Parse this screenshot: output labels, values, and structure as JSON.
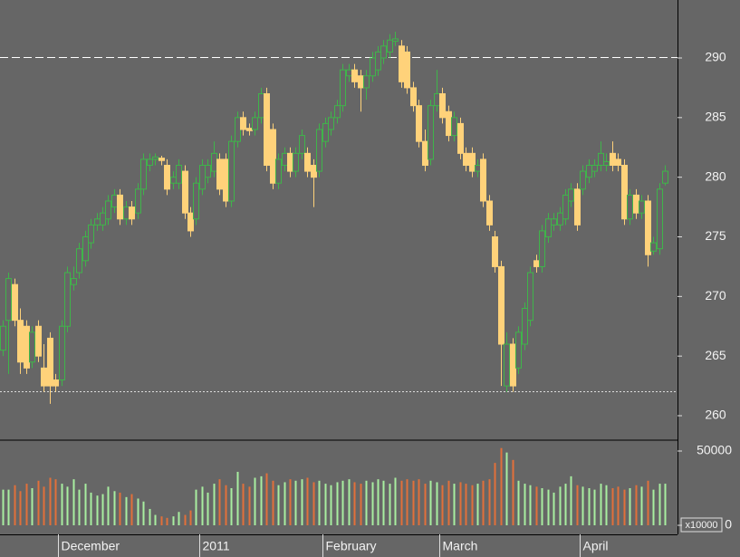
{
  "chart_data": {
    "type": "candlestick",
    "categories": [
      null,
      null,
      null,
      null,
      null,
      null,
      null,
      null,
      null,
      null,
      "December",
      null,
      null,
      null,
      null,
      null,
      null,
      null,
      null,
      null,
      null,
      null,
      null,
      null,
      null,
      null,
      null,
      null,
      null,
      null,
      null,
      null,
      null,
      null,
      "2011",
      null,
      null,
      null,
      null,
      null,
      null,
      null,
      null,
      null,
      null,
      null,
      null,
      null,
      null,
      null,
      null,
      null,
      null,
      null,
      null,
      "February",
      null,
      null,
      null,
      null,
      null,
      null,
      null,
      null,
      null,
      null,
      null,
      null,
      null,
      null,
      null,
      null,
      null,
      null,
      null,
      "March",
      null,
      null,
      null,
      null,
      null,
      null,
      null,
      null,
      null,
      null,
      null,
      null,
      null,
      null,
      null,
      null,
      null,
      null,
      null,
      null,
      null,
      null,
      null,
      "April",
      null,
      null,
      null,
      null,
      null,
      null,
      null,
      null,
      null,
      null,
      null,
      null,
      null,
      null
    ],
    "open": [
      265.5,
      268,
      271,
      268,
      267.5,
      264.5,
      267.5,
      264,
      266.5,
      263,
      263,
      267.5,
      271,
      272,
      273,
      274.5,
      276,
      276,
      276.5,
      277.5,
      278.5,
      276.5,
      277.5,
      277,
      279,
      281,
      281.5,
      281.6,
      281,
      279.5,
      279.5,
      280.5,
      277,
      276.5,
      279,
      280,
      280.5,
      281.5,
      281.5,
      278,
      283,
      285,
      284.1,
      284,
      285,
      287,
      284,
      279.5,
      281,
      282,
      280.5,
      282,
      282,
      281,
      280.5,
      283,
      284,
      285,
      286,
      288.5,
      289,
      288.5,
      287.5,
      288.5,
      289,
      290,
      290.5,
      291.4,
      291,
      290.5,
      287.5,
      286,
      283,
      281.5,
      286,
      287,
      285.5,
      283.5,
      284.5,
      282,
      282,
      280.5,
      281.5,
      278,
      275,
      272.5,
      262.5,
      266,
      264,
      266,
      268,
      273,
      272.5,
      275,
      276,
      276,
      276.5,
      278,
      279,
      279,
      280,
      280.5,
      281,
      281,
      282,
      281.5,
      281,
      276.5,
      278.5,
      277,
      278,
      273.8,
      274,
      279.5
    ],
    "high": [
      268,
      272,
      271.5,
      269,
      268,
      267.5,
      268,
      266,
      267,
      263.5,
      268,
      272.5,
      272.5,
      274.5,
      275.5,
      276.5,
      277,
      277.5,
      278.5,
      279,
      279,
      278,
      278,
      279.5,
      282,
      282,
      282,
      281.8,
      281.5,
      280.5,
      281.5,
      281,
      277.5,
      280,
      281.5,
      281.5,
      283,
      282,
      282,
      283.5,
      285.5,
      285.5,
      284.5,
      285.5,
      287.5,
      287.5,
      284.5,
      282,
      282.5,
      282.5,
      282.5,
      284,
      282.5,
      281.5,
      284.5,
      285,
      285.5,
      286.5,
      289.5,
      289.5,
      289.5,
      289,
      289,
      290.5,
      291,
      291.5,
      292,
      292.2,
      291.5,
      291,
      288,
      286.5,
      284,
      286.5,
      289,
      287.5,
      286,
      285.5,
      285,
      282.5,
      282.5,
      281.5,
      282,
      278.5,
      275.5,
      273,
      267,
      266.5,
      267.5,
      269.5,
      272.5,
      273.5,
      276,
      277,
      277,
      277.5,
      279,
      279.5,
      279.5,
      281,
      281.5,
      281.5,
      283,
      282,
      283,
      282,
      281.5,
      279,
      279,
      278.5,
      278.5,
      275,
      279.5,
      281
    ],
    "low": [
      265,
      263.5,
      267.5,
      263.5,
      263.5,
      264,
      264.5,
      262,
      261,
      262,
      262.5,
      267,
      270.5,
      271.5,
      272.5,
      274,
      275.5,
      275.5,
      276,
      277,
      276,
      276,
      276,
      276.5,
      278.5,
      280.5,
      281,
      281,
      278.5,
      279,
      279,
      276.5,
      275,
      276,
      278.5,
      279.5,
      280,
      278.5,
      277.5,
      277.5,
      282.5,
      283.5,
      283.5,
      283.5,
      284.5,
      280.5,
      279,
      279,
      280.5,
      280,
      280,
      281.5,
      280,
      277.5,
      280,
      282.5,
      283.5,
      284.5,
      285.5,
      288,
      287.5,
      285.5,
      286.5,
      288,
      288.5,
      289.5,
      290,
      291,
      287.5,
      287,
      285.5,
      282.5,
      280.5,
      281,
      285.5,
      284.5,
      283,
      283,
      281.5,
      280.5,
      280,
      280,
      277.5,
      275.5,
      272,
      262.5,
      262,
      262,
      263.5,
      265.5,
      267.5,
      272,
      272,
      274.5,
      275.5,
      275.5,
      276,
      277.5,
      275.5,
      278.5,
      279.5,
      280,
      280.5,
      280.5,
      280.5,
      280.5,
      276,
      276,
      276.5,
      276.5,
      272.5,
      273.5,
      273.5,
      279.3
    ],
    "close": [
      267.5,
      271.5,
      268,
      264.5,
      264,
      267,
      265,
      262.5,
      262.5,
      262.5,
      267.5,
      272,
      271.5,
      274,
      275,
      276,
      276.5,
      277,
      278,
      278.5,
      276.5,
      277.5,
      276.5,
      279,
      281.5,
      281.5,
      281.7,
      281.4,
      279,
      280,
      281,
      277,
      275.5,
      279.5,
      281,
      281,
      282,
      279,
      278,
      283,
      285,
      284,
      283.9,
      285,
      287,
      281,
      279.5,
      281.5,
      282,
      280.5,
      282,
      283.5,
      280.5,
      280,
      284,
      284.5,
      285,
      286,
      289,
      289,
      288,
      287.5,
      288.5,
      290,
      290.5,
      291,
      291.5,
      291.6,
      288,
      287.5,
      286,
      283,
      281,
      286,
      287,
      285,
      283.5,
      285,
      282,
      281,
      280.5,
      281,
      278,
      276,
      272.5,
      266,
      266,
      262.5,
      267,
      269,
      272,
      272.5,
      275.5,
      276.5,
      276.5,
      277,
      278.5,
      279,
      276,
      280.5,
      281,
      281,
      282,
      281.3,
      281,
      281,
      276.5,
      278.5,
      277,
      278,
      273.5,
      274.5,
      279,
      280.5
    ],
    "volume": [
      24000,
      24000,
      27000,
      23000,
      28000,
      25000,
      30000,
      26000,
      32000,
      31000,
      28000,
      26000,
      31000,
      24000,
      28000,
      22000,
      20000,
      21000,
      26000,
      23000,
      22000,
      19000,
      21000,
      18000,
      16000,
      11000,
      7000,
      6000,
      5000,
      6000,
      9000,
      7000,
      10000,
      24000,
      26000,
      22000,
      28000,
      31000,
      27000,
      25000,
      36000,
      28000,
      26000,
      32000,
      33000,
      35000,
      30000,
      27000,
      29000,
      31000,
      30000,
      31000,
      32000,
      29000,
      30000,
      28000,
      27000,
      29000,
      30000,
      31000,
      29000,
      28000,
      30000,
      29000,
      31000,
      30000,
      28000,
      32000,
      30000,
      31000,
      30000,
      31000,
      28000,
      30000,
      29000,
      27000,
      30000,
      28000,
      29000,
      28000,
      27000,
      28000,
      30000,
      31000,
      42000,
      52000,
      49000,
      44000,
      30000,
      28000,
      27000,
      26000,
      25000,
      24000,
      22000,
      26000,
      28000,
      33000,
      27000,
      26000,
      25000,
      24000,
      28000,
      27000,
      25000,
      26000,
      24000,
      25000,
      27000,
      26000,
      30000,
      24000,
      28000,
      28000
    ],
    "ylim": [
      257.95,
      294.86
    ],
    "yticks": [
      260,
      265,
      270,
      275,
      280,
      285,
      290
    ],
    "volume_ylim": [
      0,
      56700
    ],
    "volume_yticks": [
      0,
      50000
    ],
    "volume_unit_label": "x10000",
    "reference_lines": [
      {
        "value": 290.05,
        "style": "dashed"
      },
      {
        "value": 262.05,
        "style": "dotted"
      }
    ],
    "up_color": "#3fb54a",
    "down_color": "#ffd27a",
    "volume_up_color": "#a8eea0",
    "volume_down_color": "#e2703a",
    "background": "#666666"
  }
}
